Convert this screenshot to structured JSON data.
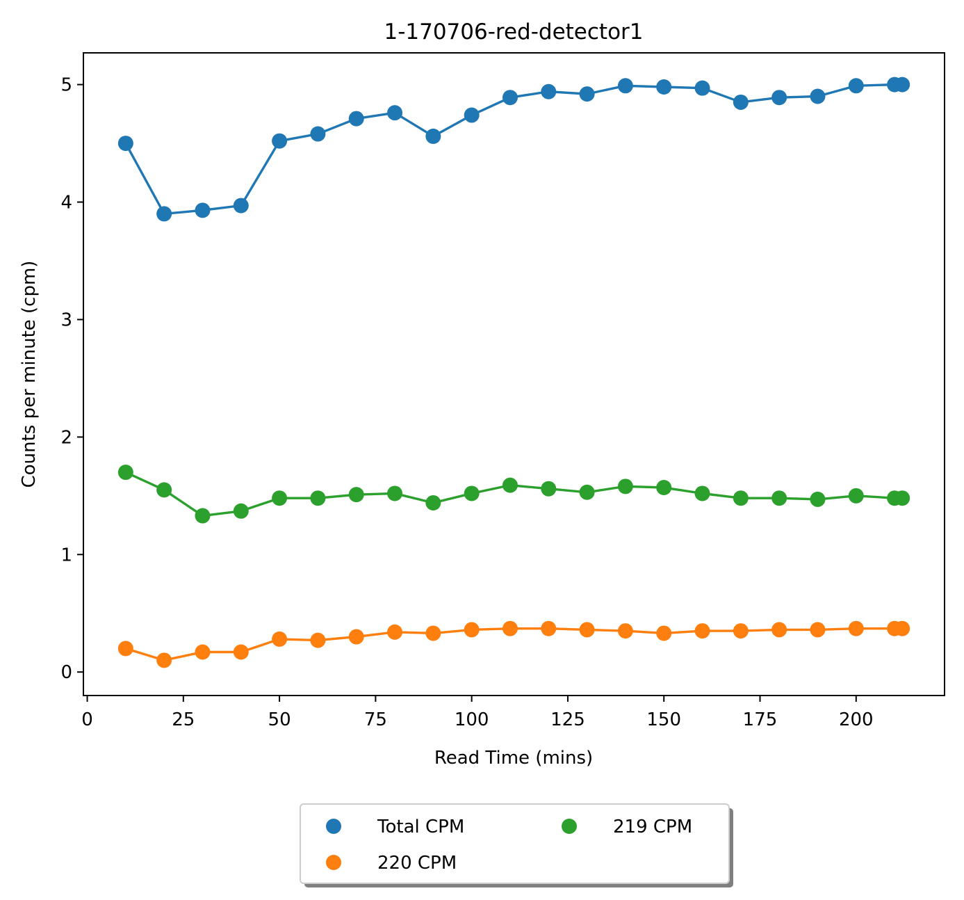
{
  "chart_data": {
    "type": "line",
    "title": "1-170706-red-detector1",
    "xlabel": "Read Time (mins)",
    "ylabel": "Counts per minute (cpm)",
    "xlim": [
      -1,
      223
    ],
    "ylim": [
      -0.2,
      5.27
    ],
    "xticks": [
      0,
      25,
      50,
      75,
      100,
      125,
      150,
      175,
      200
    ],
    "yticks": [
      0,
      1,
      2,
      3,
      4,
      5
    ],
    "legend_position": "below chart, center",
    "legend_columns": 2,
    "grid": false,
    "x": [
      10,
      20,
      30,
      40,
      50,
      60,
      70,
      80,
      90,
      100,
      110,
      120,
      130,
      140,
      150,
      160,
      170,
      180,
      190,
      200,
      210,
      212
    ],
    "series": [
      {
        "name": "Total CPM",
        "color": "#1f77b4",
        "values": [
          4.5,
          3.9,
          3.93,
          3.97,
          4.52,
          4.58,
          4.71,
          4.76,
          4.56,
          4.74,
          4.89,
          4.94,
          4.92,
          4.99,
          4.98,
          4.97,
          4.85,
          4.89,
          4.9,
          4.99,
          5.0,
          5.0
        ]
      },
      {
        "name": "220 CPM",
        "color": "#ff7f0e",
        "values": [
          0.2,
          0.1,
          0.17,
          0.17,
          0.28,
          0.27,
          0.3,
          0.34,
          0.33,
          0.36,
          0.37,
          0.37,
          0.36,
          0.35,
          0.33,
          0.35,
          0.35,
          0.36,
          0.36,
          0.37,
          0.37,
          0.37
        ]
      },
      {
        "name": "219 CPM",
        "color": "#2ca02c",
        "values": [
          1.7,
          1.55,
          1.33,
          1.37,
          1.48,
          1.48,
          1.51,
          1.52,
          1.44,
          1.52,
          1.59,
          1.56,
          1.53,
          1.58,
          1.57,
          1.52,
          1.48,
          1.48,
          1.47,
          1.5,
          1.48,
          1.48
        ]
      }
    ]
  }
}
